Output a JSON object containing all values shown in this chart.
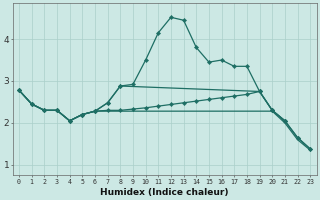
{
  "xlabel": "Humidex (Indice chaleur)",
  "background_color": "#cce8e4",
  "grid_color": "#aacfca",
  "line_color": "#1e6e64",
  "xlim": [
    -0.5,
    23.5
  ],
  "ylim": [
    0.75,
    4.85
  ],
  "yticks": [
    1,
    2,
    3,
    4
  ],
  "xticks": [
    0,
    1,
    2,
    3,
    4,
    5,
    6,
    7,
    8,
    9,
    10,
    11,
    12,
    13,
    14,
    15,
    16,
    17,
    18,
    19,
    20,
    21,
    22,
    23
  ],
  "s1x": [
    0,
    1,
    2,
    3,
    4,
    5,
    6,
    7,
    8,
    9,
    10,
    11,
    12,
    13,
    14,
    15,
    16,
    17,
    18,
    19,
    20,
    21
  ],
  "s1y": [
    2.78,
    2.45,
    2.3,
    2.3,
    2.05,
    2.2,
    2.28,
    2.48,
    2.88,
    2.92,
    3.5,
    4.15,
    4.52,
    4.45,
    3.8,
    3.45,
    3.5,
    3.35,
    3.35,
    2.75,
    2.3,
    2.05
  ],
  "s2x": [
    0,
    1,
    2,
    3,
    4,
    5,
    6,
    7,
    8,
    19,
    20,
    21,
    22,
    23
  ],
  "s2y": [
    2.78,
    2.45,
    2.3,
    2.3,
    2.05,
    2.2,
    2.28,
    2.48,
    2.88,
    2.75,
    2.3,
    2.05,
    1.65,
    1.38
  ],
  "s3x": [
    0,
    1,
    2,
    3,
    4,
    5,
    6,
    7,
    8,
    9,
    10,
    11,
    12,
    13,
    14,
    15,
    16,
    17,
    18,
    19,
    20,
    21,
    22,
    23
  ],
  "s3y": [
    2.78,
    2.45,
    2.3,
    2.3,
    2.05,
    2.2,
    2.28,
    2.3,
    2.3,
    2.33,
    2.36,
    2.4,
    2.44,
    2.48,
    2.52,
    2.56,
    2.6,
    2.64,
    2.68,
    2.75,
    2.3,
    2.05,
    1.65,
    1.38
  ],
  "s4x": [
    0,
    1,
    2,
    3,
    4,
    5,
    6,
    7,
    8,
    9,
    10,
    11,
    12,
    13,
    14,
    15,
    16,
    17,
    18,
    19,
    20,
    21,
    22,
    23
  ],
  "s4y": [
    2.78,
    2.45,
    2.3,
    2.3,
    2.05,
    2.2,
    2.28,
    2.28,
    2.28,
    2.28,
    2.28,
    2.28,
    2.28,
    2.28,
    2.28,
    2.28,
    2.28,
    2.28,
    2.28,
    2.28,
    2.28,
    2.0,
    1.6,
    1.35
  ]
}
